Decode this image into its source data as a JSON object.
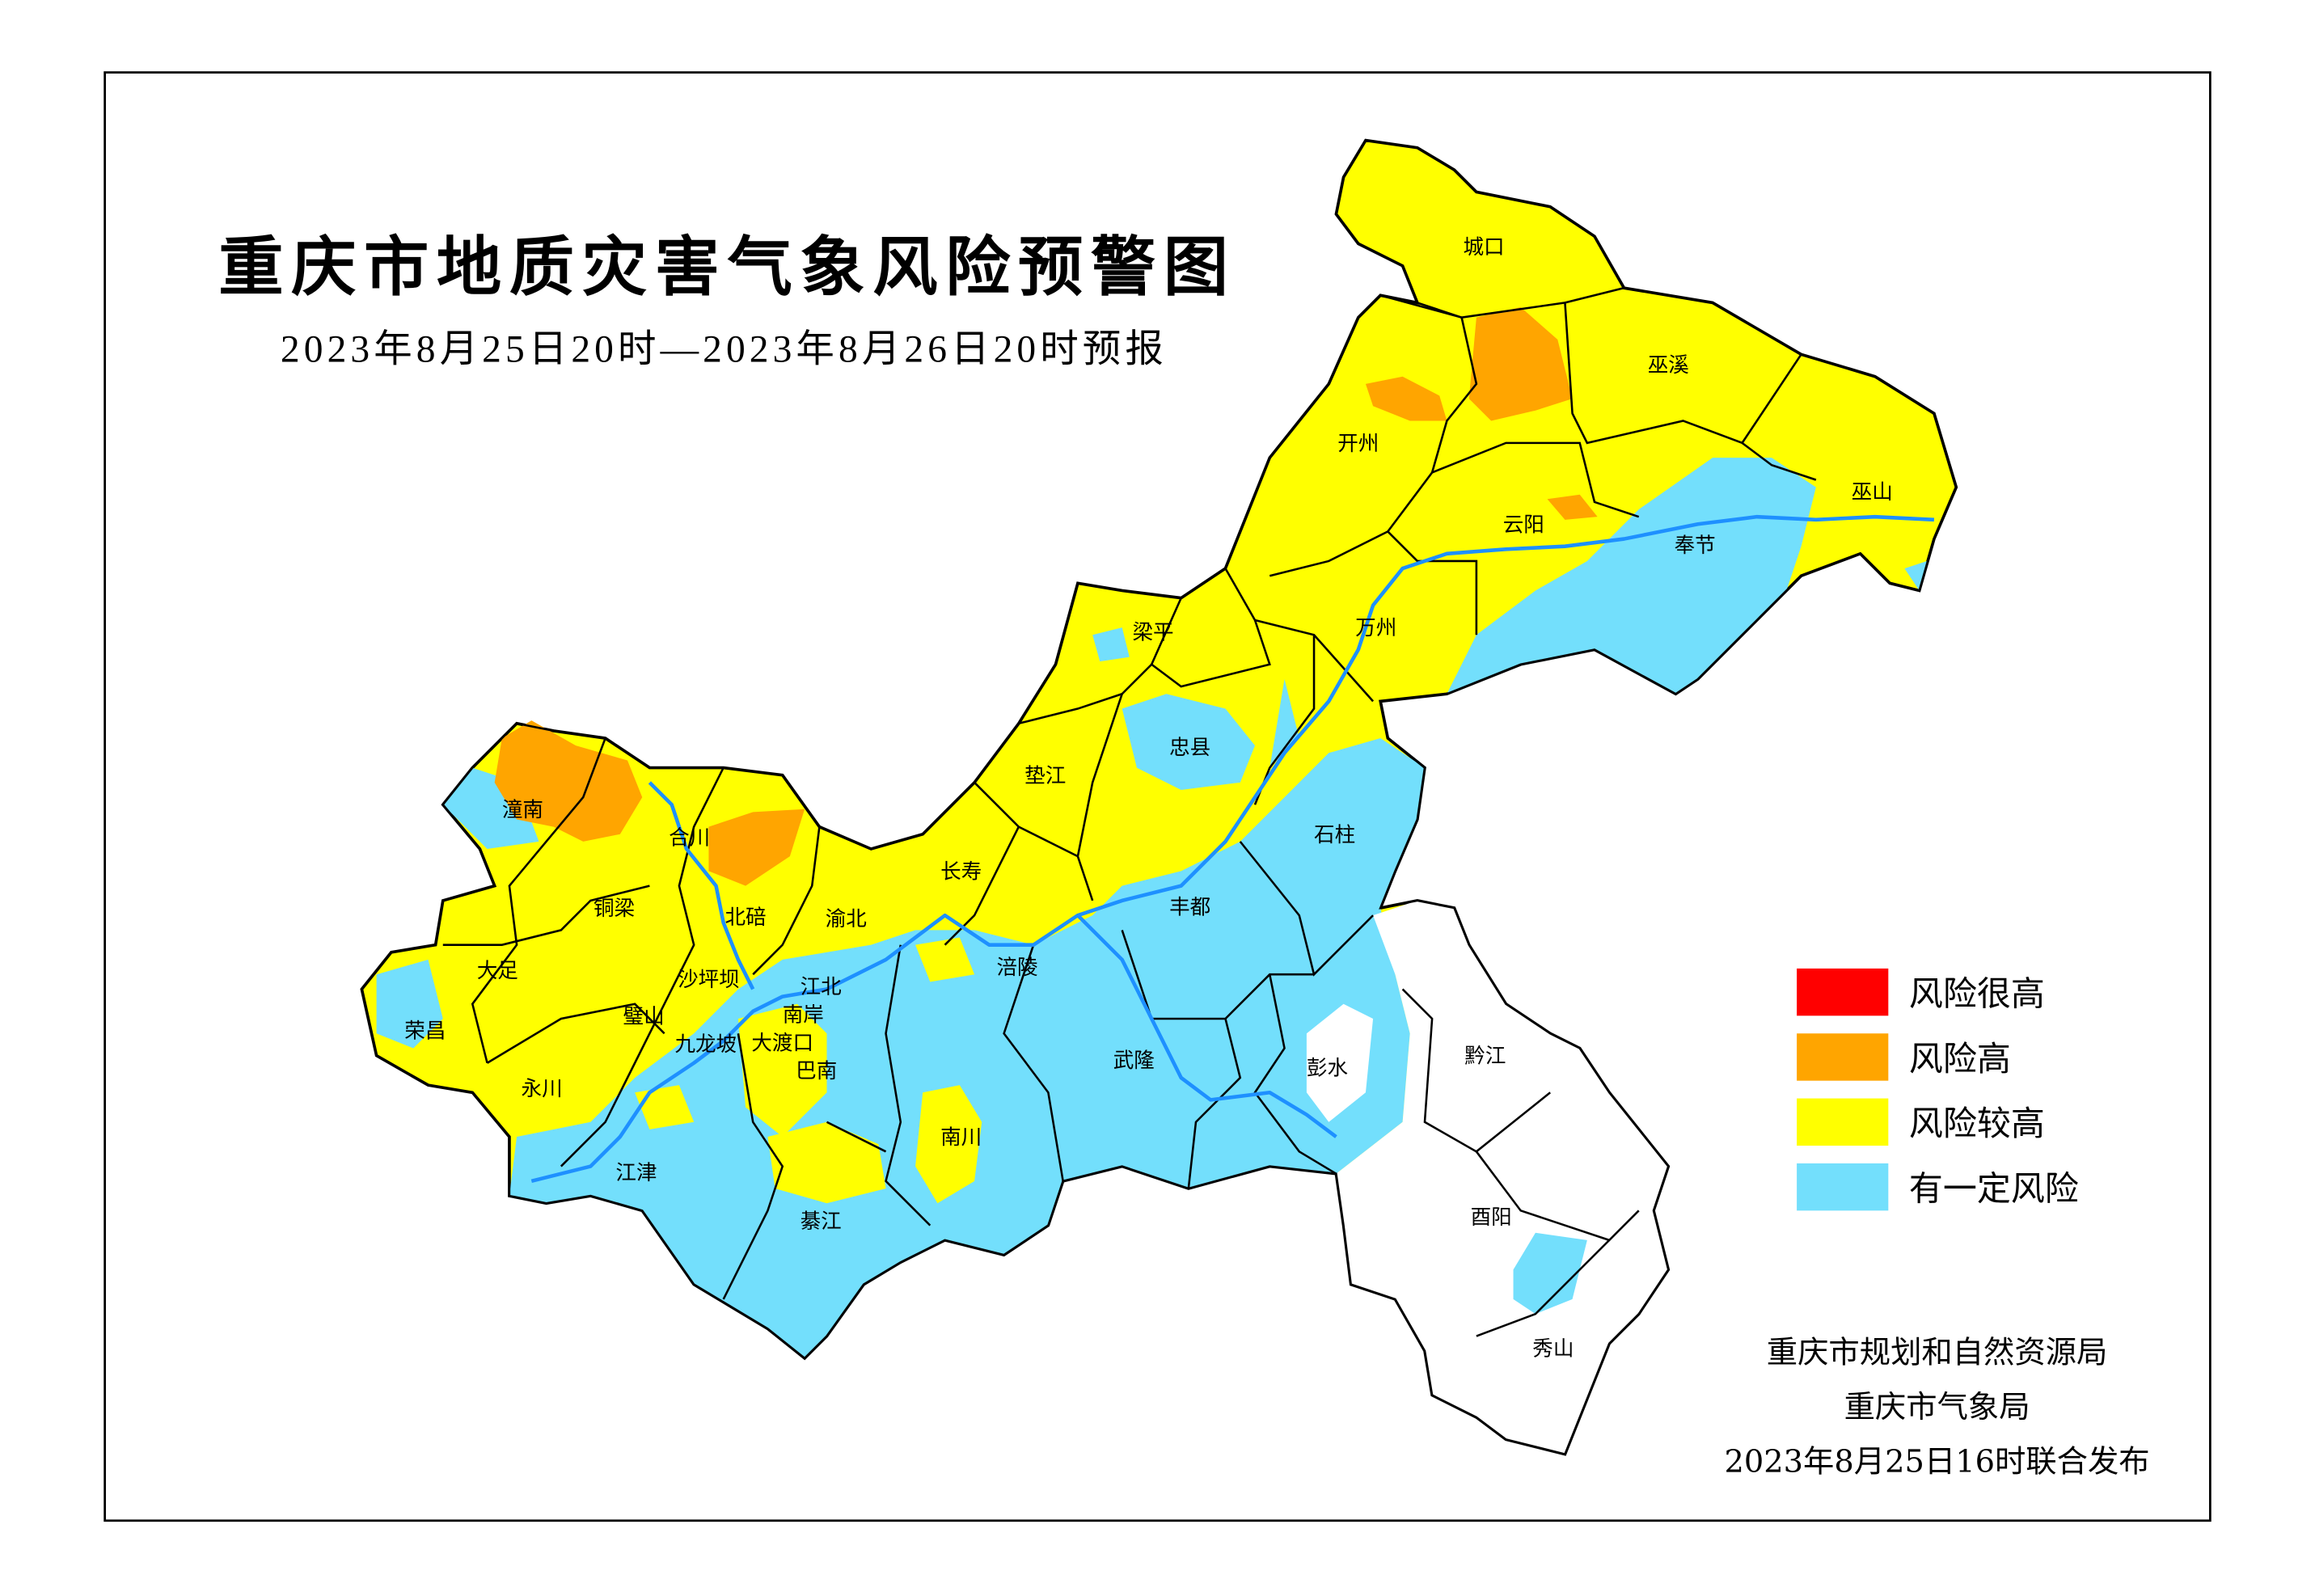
{
  "title": "重庆市地质灾害气象风险预警图",
  "subtitle": "2023年8月25日20时—2023年8月26日20时预报",
  "colors": {
    "very_high": "#ff0000",
    "high": "#ffa500",
    "relatively_high": "#ffff00",
    "some_risk": "#73dffc",
    "none": "#ffffff",
    "river": "#1e90ff"
  },
  "legend": [
    {
      "label": "风险很高",
      "color": "#ff0000"
    },
    {
      "label": "风险高",
      "color": "#ffa500"
    },
    {
      "label": "风险较高",
      "color": "#ffff00"
    },
    {
      "label": "有一定风险",
      "color": "#73dffc"
    }
  ],
  "districts": [
    "城口",
    "巫溪",
    "开州",
    "云阳",
    "巫山",
    "奉节",
    "万州",
    "梁平",
    "忠县",
    "垫江",
    "石柱",
    "长寿",
    "丰都",
    "涪陵",
    "武隆",
    "彭水",
    "黔江",
    "酉阳",
    "秀山",
    "南川",
    "綦江",
    "江津",
    "巴南",
    "南岸",
    "江北",
    "渝北",
    "北碚",
    "合川",
    "潼南",
    "铜梁",
    "大足",
    "荣昌",
    "永川",
    "璧山",
    "沙坪坝",
    "九龙坡",
    "大渡口"
  ],
  "footer": {
    "line1": "重庆市规划和自然资源局",
    "line2": "重庆市气象局",
    "line3": "2023年8月25日16时联合发布"
  }
}
